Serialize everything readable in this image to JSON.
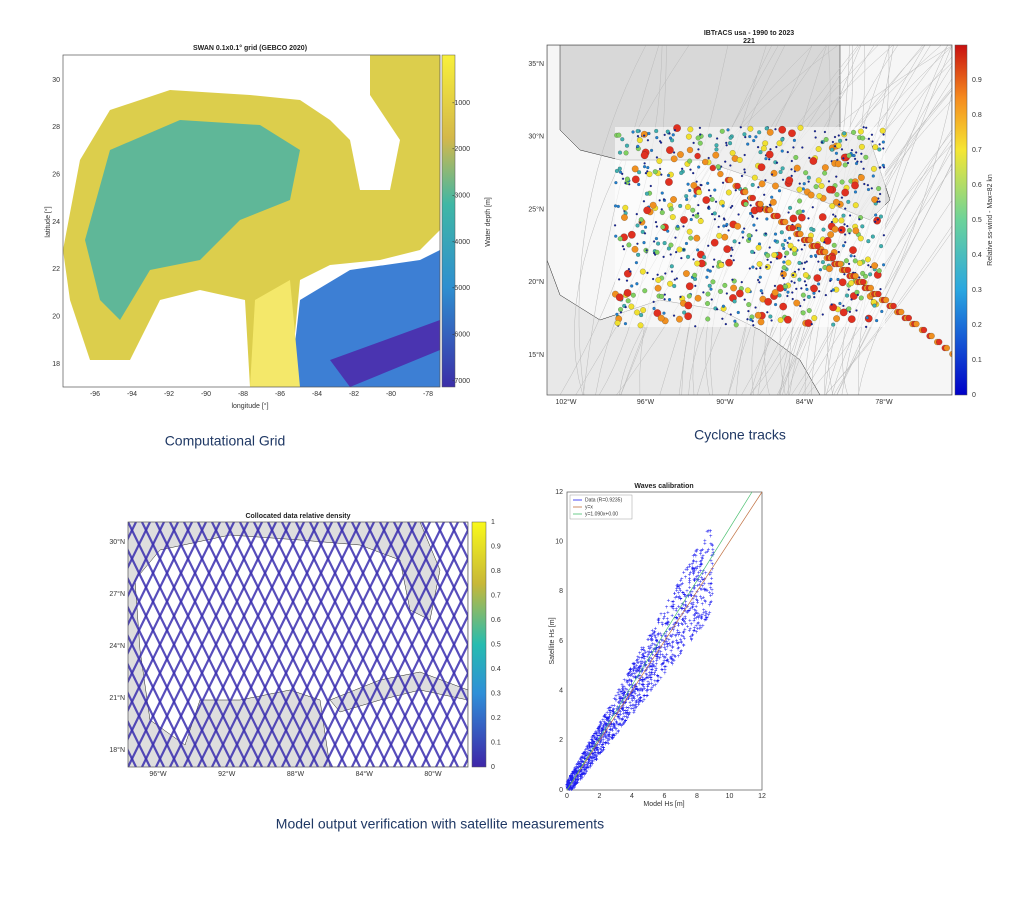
{
  "panels": [
    {
      "title": "SWAN 0.1x0.1° grid (GEBCO 2020)",
      "xlabel": "longitude [°]",
      "ylabel": "latitude [°]",
      "xticks": [
        "-96",
        "-94",
        "-92",
        "-90",
        "-88",
        "-86",
        "-84",
        "-82",
        "-80",
        "-78"
      ],
      "yticks": [
        "18",
        "20",
        "22",
        "24",
        "26",
        "28",
        "30"
      ],
      "colorbar": {
        "label": "Water depth [m]",
        "ticks": [
          "-1000",
          "-2000",
          "-3000",
          "-4000",
          "-5000",
          "-6000",
          "-7000"
        ]
      }
    },
    {
      "title": "IBTrACS usa - 1990 to 2023",
      "subtitle": "221",
      "xticks": [
        "102°W",
        "96°W",
        "90°W",
        "84°W",
        "78°W"
      ],
      "yticks": [
        "35°N",
        "30°N",
        "25°N",
        "20°N",
        "15°N"
      ],
      "colorbar": {
        "label": "Relative ss-wind - Max=82 kn",
        "ticks": [
          "0",
          "0.1",
          "0.2",
          "0.3",
          "0.4",
          "0.5",
          "0.6",
          "0.7",
          "0.8",
          "0.9"
        ]
      }
    },
    {
      "title": "Collocated data relative density",
      "xticks": [
        "96°W",
        "92°W",
        "88°W",
        "84°W",
        "80°W"
      ],
      "yticks": [
        "30°N",
        "27°N",
        "24°N",
        "21°N",
        "18°N"
      ],
      "colorbar": {
        "ticks": [
          "0",
          "0.1",
          "0.2",
          "0.3",
          "0.4",
          "0.5",
          "0.6",
          "0.7",
          "0.8",
          "0.9",
          "1"
        ]
      }
    },
    {
      "title": "Waves calibration",
      "xlabel": "Model Hs [m]",
      "ylabel": "Satellite Hs [m]",
      "legend": [
        "Data (R=0.9235)",
        "y=x",
        "y=1.090x+0.00"
      ],
      "xticks": [
        "0",
        "2",
        "4",
        "6",
        "8",
        "10",
        "12"
      ],
      "yticks": [
        "0",
        "2",
        "4",
        "6",
        "8",
        "10",
        "12"
      ]
    }
  ],
  "captions": [
    "Computational Grid",
    "Cyclone tracks",
    "Model output verification with satellite measurements"
  ]
}
